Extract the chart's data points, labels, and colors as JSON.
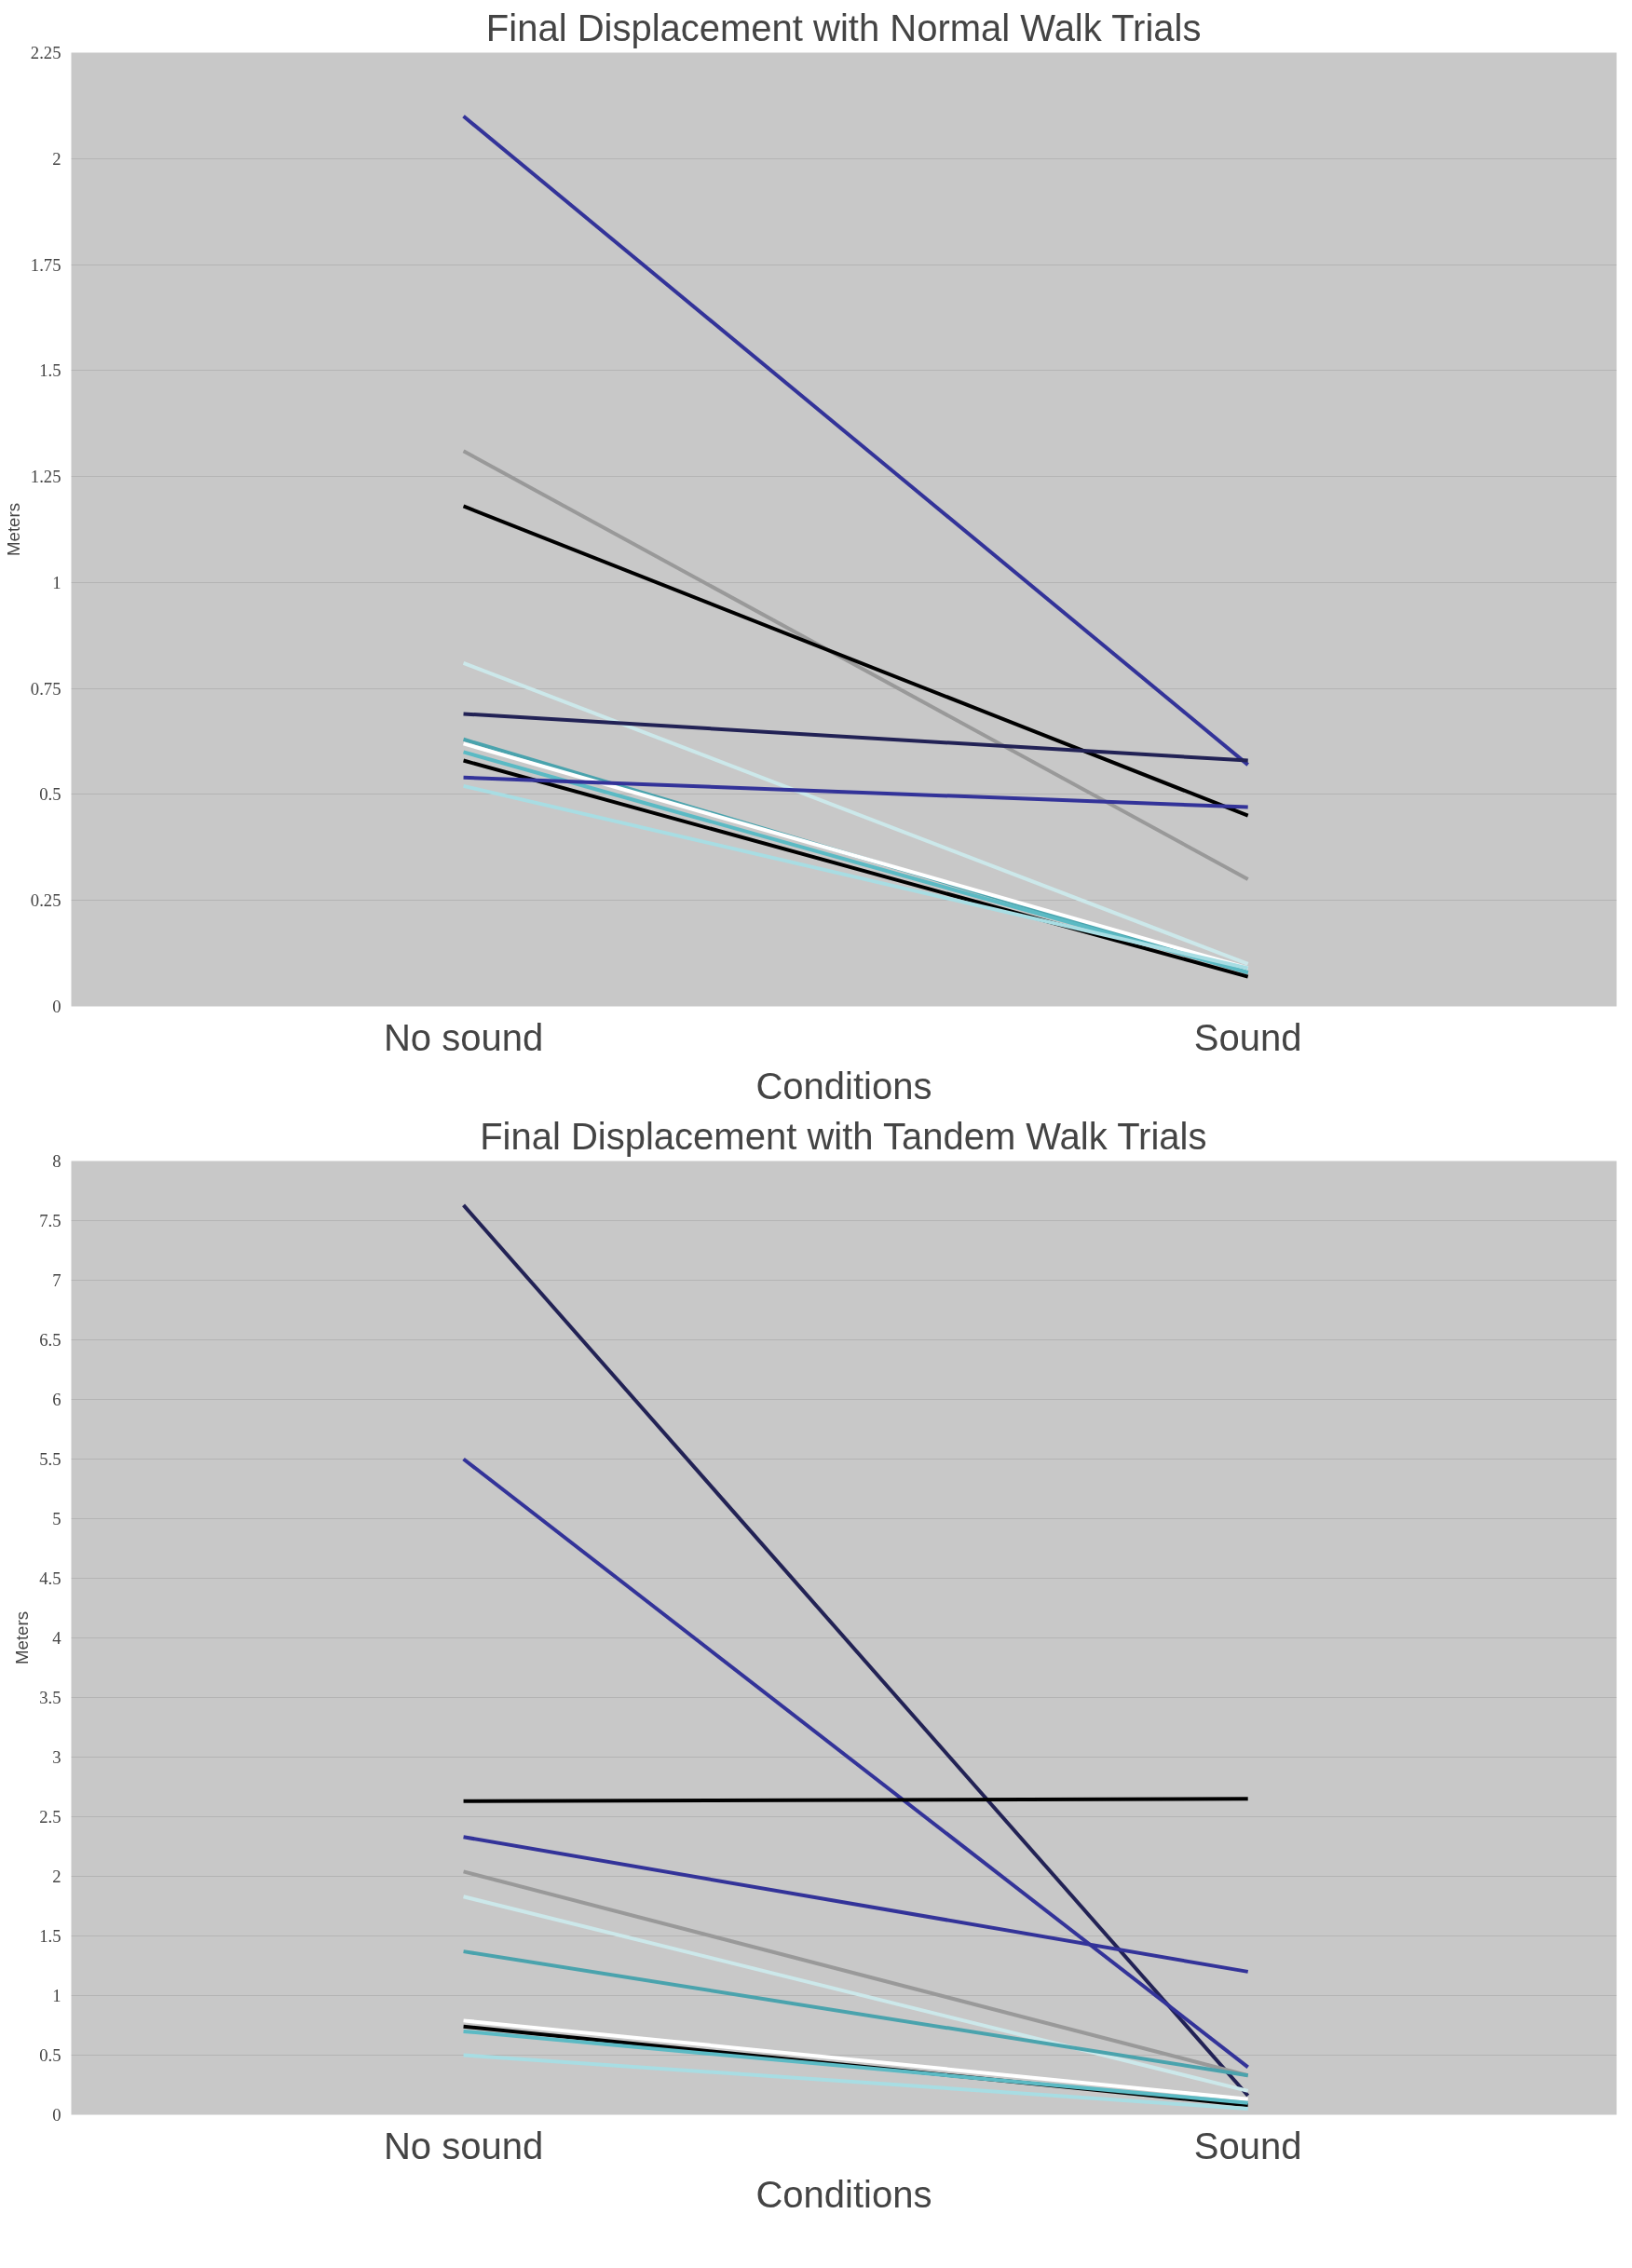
{
  "chart_data": [
    {
      "type": "line",
      "title": "Final Displacement with Normal Walk Trials",
      "xlabel": "Conditions",
      "ylabel": "Meters",
      "categories": [
        "No sound",
        "Sound"
      ],
      "ylim": [
        0,
        2.25
      ],
      "yticks": [
        0,
        0.25,
        0.5,
        0.75,
        1,
        1.25,
        1.5,
        1.75,
        2,
        2.25
      ],
      "grid": "y",
      "marker": "none",
      "line_style": "solid",
      "series": [
        {
          "color": "#333399",
          "values": [
            2.1,
            0.57
          ]
        },
        {
          "color": "#999999",
          "values": [
            1.31,
            0.3
          ]
        },
        {
          "color": "#000000",
          "values": [
            1.18,
            0.45
          ]
        },
        {
          "color": "#cce8ea",
          "values": [
            0.81,
            0.1
          ]
        },
        {
          "color": "#222255",
          "values": [
            0.69,
            0.58
          ]
        },
        {
          "color": "#4aa3ad",
          "values": [
            0.63,
            0.08
          ]
        },
        {
          "color": "#ffffff",
          "values": [
            0.62,
            0.09
          ]
        },
        {
          "color": "#5bbac4",
          "values": [
            0.6,
            0.08
          ]
        },
        {
          "color": "#000000",
          "values": [
            0.58,
            0.07
          ]
        },
        {
          "color": "#333399",
          "values": [
            0.54,
            0.47
          ]
        },
        {
          "color": "#a8dde3",
          "values": [
            0.52,
            0.09
          ]
        }
      ]
    },
    {
      "type": "line",
      "title": "Final Displacement with Tandem Walk Trials",
      "xlabel": "Conditions",
      "ylabel": "Meters",
      "categories": [
        "No sound",
        "Sound"
      ],
      "ylim": [
        0,
        8
      ],
      "yticks": [
        0,
        0.5,
        1,
        1.5,
        2,
        2.5,
        3,
        3.5,
        4,
        4.5,
        5,
        5.5,
        6,
        6.5,
        7,
        7.5,
        8
      ],
      "grid": "y",
      "marker": "none",
      "line_style": "solid",
      "series": [
        {
          "color": "#222255",
          "values": [
            7.63,
            0.16
          ]
        },
        {
          "color": "#333399",
          "values": [
            5.5,
            0.4
          ]
        },
        {
          "color": "#000000",
          "values": [
            2.63,
            2.65
          ]
        },
        {
          "color": "#333399",
          "values": [
            2.33,
            1.2
          ]
        },
        {
          "color": "#999999",
          "values": [
            2.04,
            0.33
          ]
        },
        {
          "color": "#cce8ea",
          "values": [
            1.83,
            0.2
          ]
        },
        {
          "color": "#4aa3ad",
          "values": [
            1.37,
            0.33
          ]
        },
        {
          "color": "#ffffff",
          "values": [
            0.79,
            0.13
          ]
        },
        {
          "color": "#000000",
          "values": [
            0.74,
            0.08
          ]
        },
        {
          "color": "#5bbac4",
          "values": [
            0.7,
            0.1
          ]
        },
        {
          "color": "#a8dde3",
          "values": [
            0.5,
            0.05
          ]
        }
      ]
    }
  ]
}
